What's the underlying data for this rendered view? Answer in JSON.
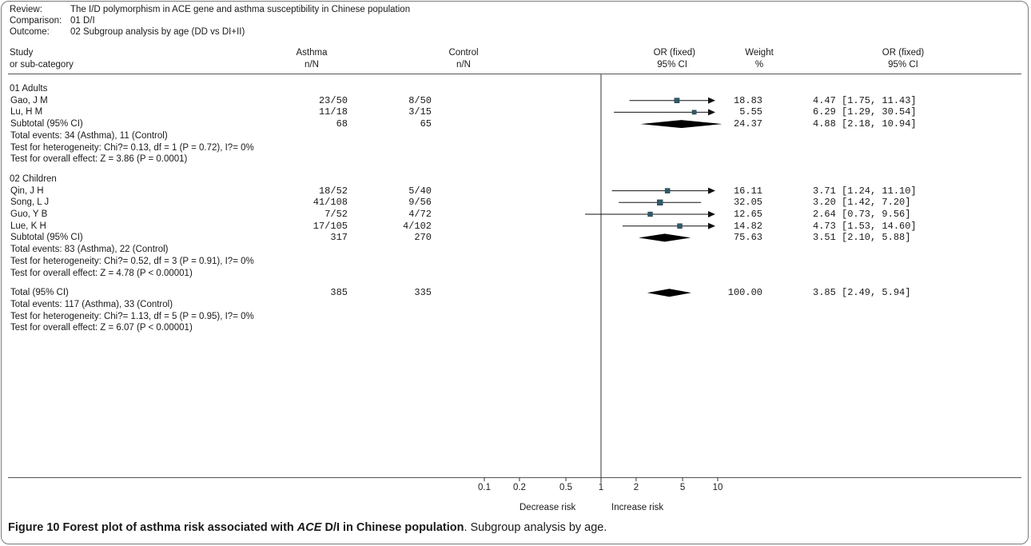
{
  "header": {
    "review_label": "Review:",
    "review_value": "The I/D polymorphism in ACE gene and asthma susceptibility in Chinese population",
    "comparison_label": "Comparison:",
    "comparison_value": "01 D/I",
    "outcome_label": "Outcome:",
    "outcome_value": "02 Subgroup analysis by age (DD vs DI+II)"
  },
  "columns": {
    "study_1": "Study",
    "study_2": "or sub-category",
    "asthma_1": "Asthma",
    "asthma_2": "n/N",
    "control_1": "Control",
    "control_2": "n/N",
    "or_plot_1": "OR (fixed)",
    "or_plot_2": "95% CI",
    "weight_1": "Weight",
    "weight_2": "%",
    "or_text_1": "OR (fixed)",
    "or_text_2": "95% CI"
  },
  "footer": {
    "decrease": "Decrease risk",
    "increase": "Increase risk"
  },
  "caption": {
    "prefix": "Figure 10 Forest plot of asthma risk associated with ",
    "gene": "ACE",
    "mid": " D/I in Chinese population",
    "rest": ". Subgroup analysis by age."
  },
  "chart_data": {
    "type": "forest",
    "x_scale": "log",
    "x_ticks": [
      "0.1",
      "0.2",
      "0.5",
      "1",
      "2",
      "5",
      "10"
    ],
    "xlim": [
      0.1,
      10
    ],
    "groups": [
      {
        "name": "01 Adults",
        "studies": [
          {
            "study": "Gao, J M",
            "asthma": "23/50",
            "control": "8/50",
            "weight": "18.83",
            "or_text": "4.47 [1.75, 11.43]",
            "or": 4.47,
            "lo": 1.75,
            "hi": 11.43
          },
          {
            "study": "Lu, H M",
            "asthma": "11/18",
            "control": "3/15",
            "weight": "5.55",
            "or_text": "6.29 [1.29, 30.54]",
            "or": 6.29,
            "lo": 1.29,
            "hi": 30.54
          }
        ],
        "subtotal": {
          "label": "Subtotal (95% CI)",
          "asthma": "68",
          "control": "65",
          "weight": "24.37",
          "or_text": "4.88 [2.18, 10.94]",
          "or": 4.88,
          "lo": 2.18,
          "hi": 10.94
        },
        "notes": [
          "Total events: 34 (Asthma), 11 (Control)",
          "Test for heterogeneity: Chi?= 0.13, df = 1 (P = 0.72), I?= 0%",
          "Test for overall effect: Z = 3.86 (P = 0.0001)"
        ]
      },
      {
        "name": "02 Children",
        "studies": [
          {
            "study": "Qin, J H",
            "asthma": "18/52",
            "control": "5/40",
            "weight": "16.11",
            "or_text": "3.71 [1.24, 11.10]",
            "or": 3.71,
            "lo": 1.24,
            "hi": 11.1
          },
          {
            "study": "Song, L J",
            "asthma": "41/108",
            "control": "9/56",
            "weight": "32.05",
            "or_text": "3.20 [1.42, 7.20]",
            "or": 3.2,
            "lo": 1.42,
            "hi": 7.2
          },
          {
            "study": "Guo, Y B",
            "asthma": "7/52",
            "control": "4/72",
            "weight": "12.65",
            "or_text": "2.64 [0.73, 9.56]",
            "or": 2.64,
            "lo": 0.73,
            "hi": 9.56
          },
          {
            "study": "Lue, K H",
            "asthma": "17/105",
            "control": "4/102",
            "weight": "14.82",
            "or_text": "4.73 [1.53, 14.60]",
            "or": 4.73,
            "lo": 1.53,
            "hi": 14.6
          }
        ],
        "subtotal": {
          "label": "Subtotal (95% CI)",
          "asthma": "317",
          "control": "270",
          "weight": "75.63",
          "or_text": "3.51 [2.10, 5.88]",
          "or": 3.51,
          "lo": 2.1,
          "hi": 5.88
        },
        "notes": [
          "Total events: 83 (Asthma), 22 (Control)",
          "Test for heterogeneity: Chi?= 0.52, df = 3 (P = 0.91), I?= 0%",
          "Test for overall effect: Z = 4.78 (P < 0.00001)"
        ]
      }
    ],
    "total": {
      "label": "Total (95% CI)",
      "asthma": "385",
      "control": "335",
      "weight": "100.00",
      "or_text": "3.85 [2.49, 5.94]",
      "or": 3.85,
      "lo": 2.49,
      "hi": 5.94,
      "notes": [
        "Total events: 117 (Asthma), 33 (Control)",
        "Test for heterogeneity: Chi?= 1.13, df = 5 (P = 0.95), I?= 0%",
        "Test for overall effect: Z = 6.07 (P < 0.00001)"
      ]
    }
  }
}
